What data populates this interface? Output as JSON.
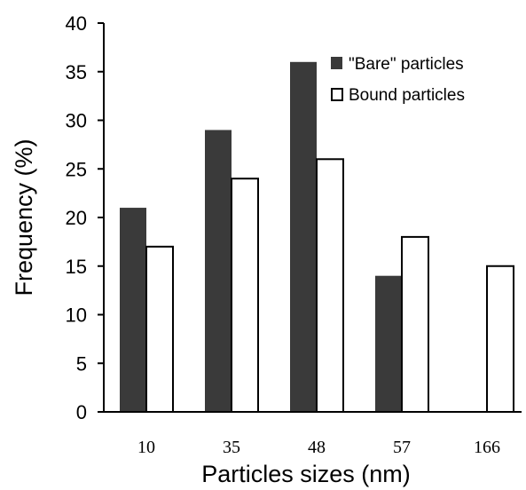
{
  "chart_data": {
    "type": "bar",
    "title": "",
    "xlabel": "Particles sizes (nm)",
    "ylabel": "Frequency (%)",
    "categories": [
      "10",
      "35",
      "48",
      "57",
      "166"
    ],
    "series": [
      {
        "name": "\"Bare\" particles",
        "values": [
          21,
          29,
          36,
          14,
          0
        ],
        "color": "#3a3a3a"
      },
      {
        "name": "Bound particles",
        "values": [
          17,
          24,
          26,
          18,
          15
        ],
        "color": "#ffffff"
      }
    ],
    "ylim": [
      0,
      40
    ],
    "yticks": [
      0,
      5,
      10,
      15,
      20,
      25,
      30,
      35,
      40
    ],
    "grid": false,
    "legend_position": "top-right"
  }
}
